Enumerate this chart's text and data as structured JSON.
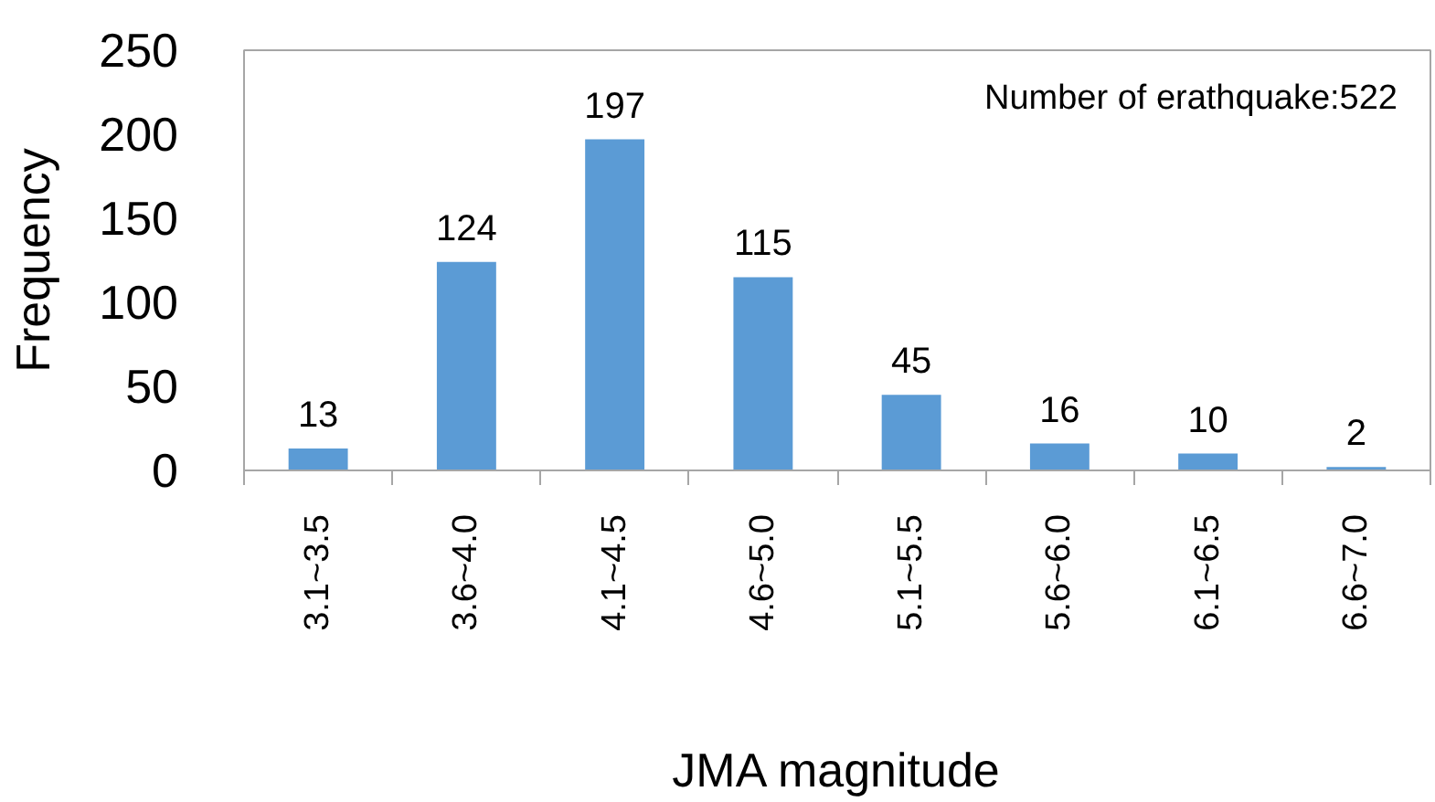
{
  "chart_data": {
    "type": "bar",
    "xlabel": "JMA magnitude",
    "ylabel": "Frequency",
    "categories": [
      "3.1~3.5",
      "3.6~4.0",
      "4.1~4.5",
      "4.6~5.0",
      "5.1~5.5",
      "5.6~6.0",
      "6.1~6.5",
      "6.6~7.0"
    ],
    "values": [
      13,
      124,
      197,
      115,
      45,
      16,
      10,
      2
    ],
    "color": "#5b9bd5",
    "ylim": [
      0,
      250
    ],
    "yticks": [
      0,
      50,
      100,
      150,
      200,
      250
    ],
    "data_labels": true,
    "annotations": [
      "Number of erathquake:522"
    ]
  }
}
